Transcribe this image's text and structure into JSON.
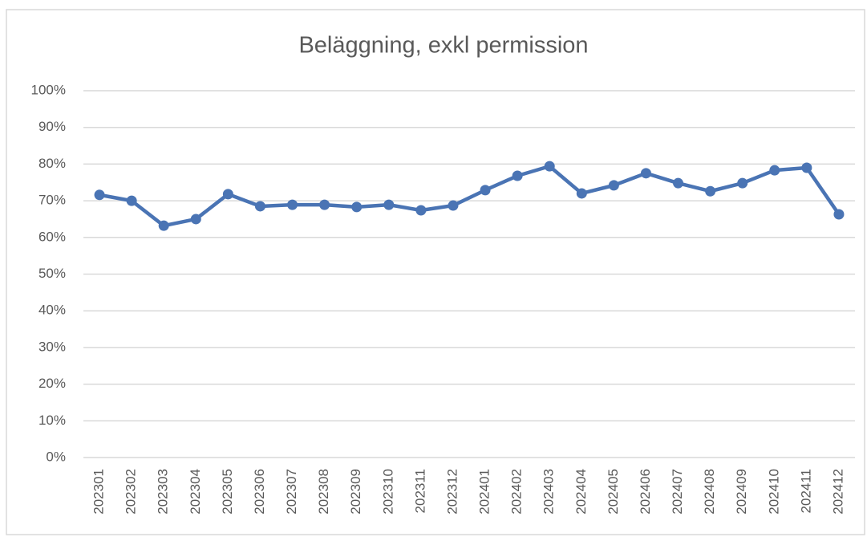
{
  "chart_data": {
    "type": "line",
    "title": "Beläggning, exkl permission",
    "categories": [
      "202301",
      "202302",
      "202303",
      "202304",
      "202305",
      "202306",
      "202307",
      "202308",
      "202309",
      "202310",
      "202311",
      "202312",
      "202401",
      "202402",
      "202403",
      "202404",
      "202405",
      "202406",
      "202407",
      "202408",
      "202409",
      "202410",
      "202411",
      "202412"
    ],
    "series": [
      {
        "name": "Beläggning",
        "color": "#4a74b4",
        "values": [
          71.6,
          70.0,
          63.2,
          65.0,
          71.8,
          68.5,
          68.9,
          68.9,
          68.3,
          68.9,
          67.4,
          68.7,
          72.9,
          76.8,
          79.4,
          72.0,
          74.2,
          77.5,
          74.8,
          72.6,
          74.8,
          78.3,
          79.0,
          66.3
        ]
      }
    ],
    "ylim": [
      0,
      100
    ],
    "yticks": [
      {
        "value": 0,
        "label": "0%"
      },
      {
        "value": 10,
        "label": "10%"
      },
      {
        "value": 20,
        "label": "20%"
      },
      {
        "value": 30,
        "label": "30%"
      },
      {
        "value": 40,
        "label": "40%"
      },
      {
        "value": 50,
        "label": "50%"
      },
      {
        "value": 60,
        "label": "60%"
      },
      {
        "value": 70,
        "label": "70%"
      },
      {
        "value": 80,
        "label": "80%"
      },
      {
        "value": 90,
        "label": "90%"
      },
      {
        "value": 100,
        "label": "100%"
      }
    ],
    "grid": true
  }
}
